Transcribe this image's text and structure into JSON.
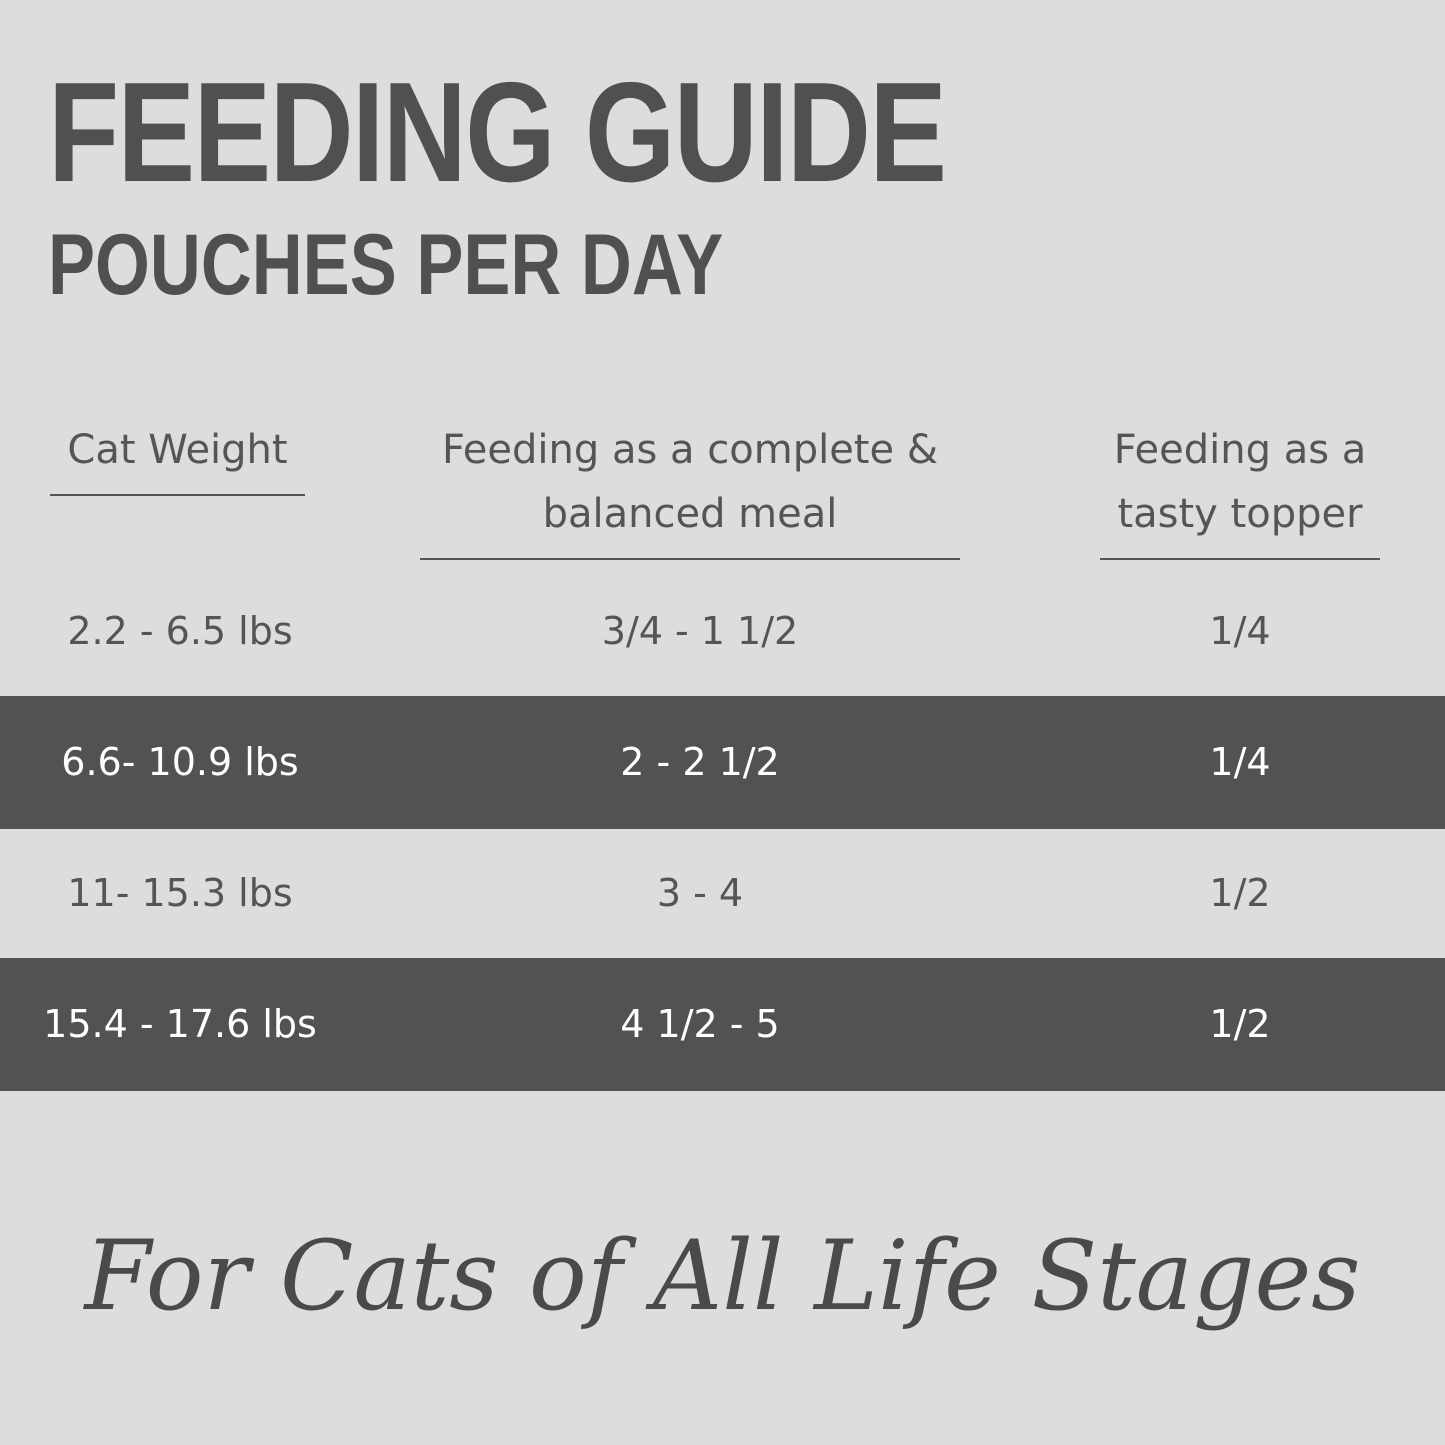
{
  "header": {
    "title": "FEEDING GUIDE",
    "subtitle": "POUCHES PER DAY"
  },
  "table": {
    "columns": [
      "Cat Weight",
      "Feeding as a complete & balanced meal",
      "Feeding as a tasty topper"
    ],
    "rows": [
      [
        "2.2 - 6.5 lbs",
        "3/4 - 1 1/2",
        "1/4"
      ],
      [
        "6.6- 10.9 lbs",
        "2 - 2 1/2",
        "1/4"
      ],
      [
        "11- 15.3 lbs",
        "3 - 4",
        "1/2"
      ],
      [
        "15.4 - 17.6 lbs",
        "4 1/2 - 5",
        "1/2"
      ]
    ]
  },
  "footer": {
    "tagline": "For Cats of All Life Stages"
  }
}
